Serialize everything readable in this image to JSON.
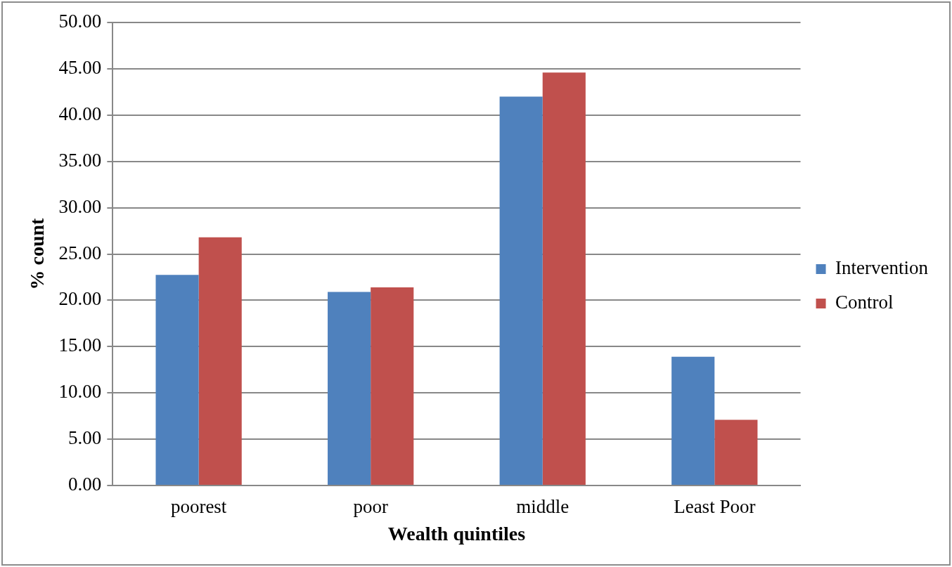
{
  "chart_data": {
    "type": "bar",
    "xlabel": "Wealth quintiles",
    "ylabel": "% count",
    "categories": [
      "poorest",
      "poor",
      "middle",
      "Least Poor"
    ],
    "series": [
      {
        "name": "Intervention",
        "color": "#4f81bd",
        "values": [
          22.75,
          20.9,
          42.0,
          13.9
        ]
      },
      {
        "name": "Control",
        "color": "#c0504d",
        "values": [
          26.8,
          21.4,
          44.6,
          7.1
        ]
      }
    ],
    "ylim": [
      0,
      50
    ],
    "yticks": [
      {
        "value": 0,
        "label": "0.00"
      },
      {
        "value": 5,
        "label": "5.00"
      },
      {
        "value": 10,
        "label": "10.00"
      },
      {
        "value": 15,
        "label": "15.00"
      },
      {
        "value": 20,
        "label": "20.00"
      },
      {
        "value": 25,
        "label": "25.00"
      },
      {
        "value": 30,
        "label": "30.00"
      },
      {
        "value": 35,
        "label": "35.00"
      },
      {
        "value": 40,
        "label": "40.00"
      },
      {
        "value": 45,
        "label": "45.00"
      },
      {
        "value": 50,
        "label": "50.00"
      }
    ],
    "grid": "y",
    "legend": "right"
  }
}
